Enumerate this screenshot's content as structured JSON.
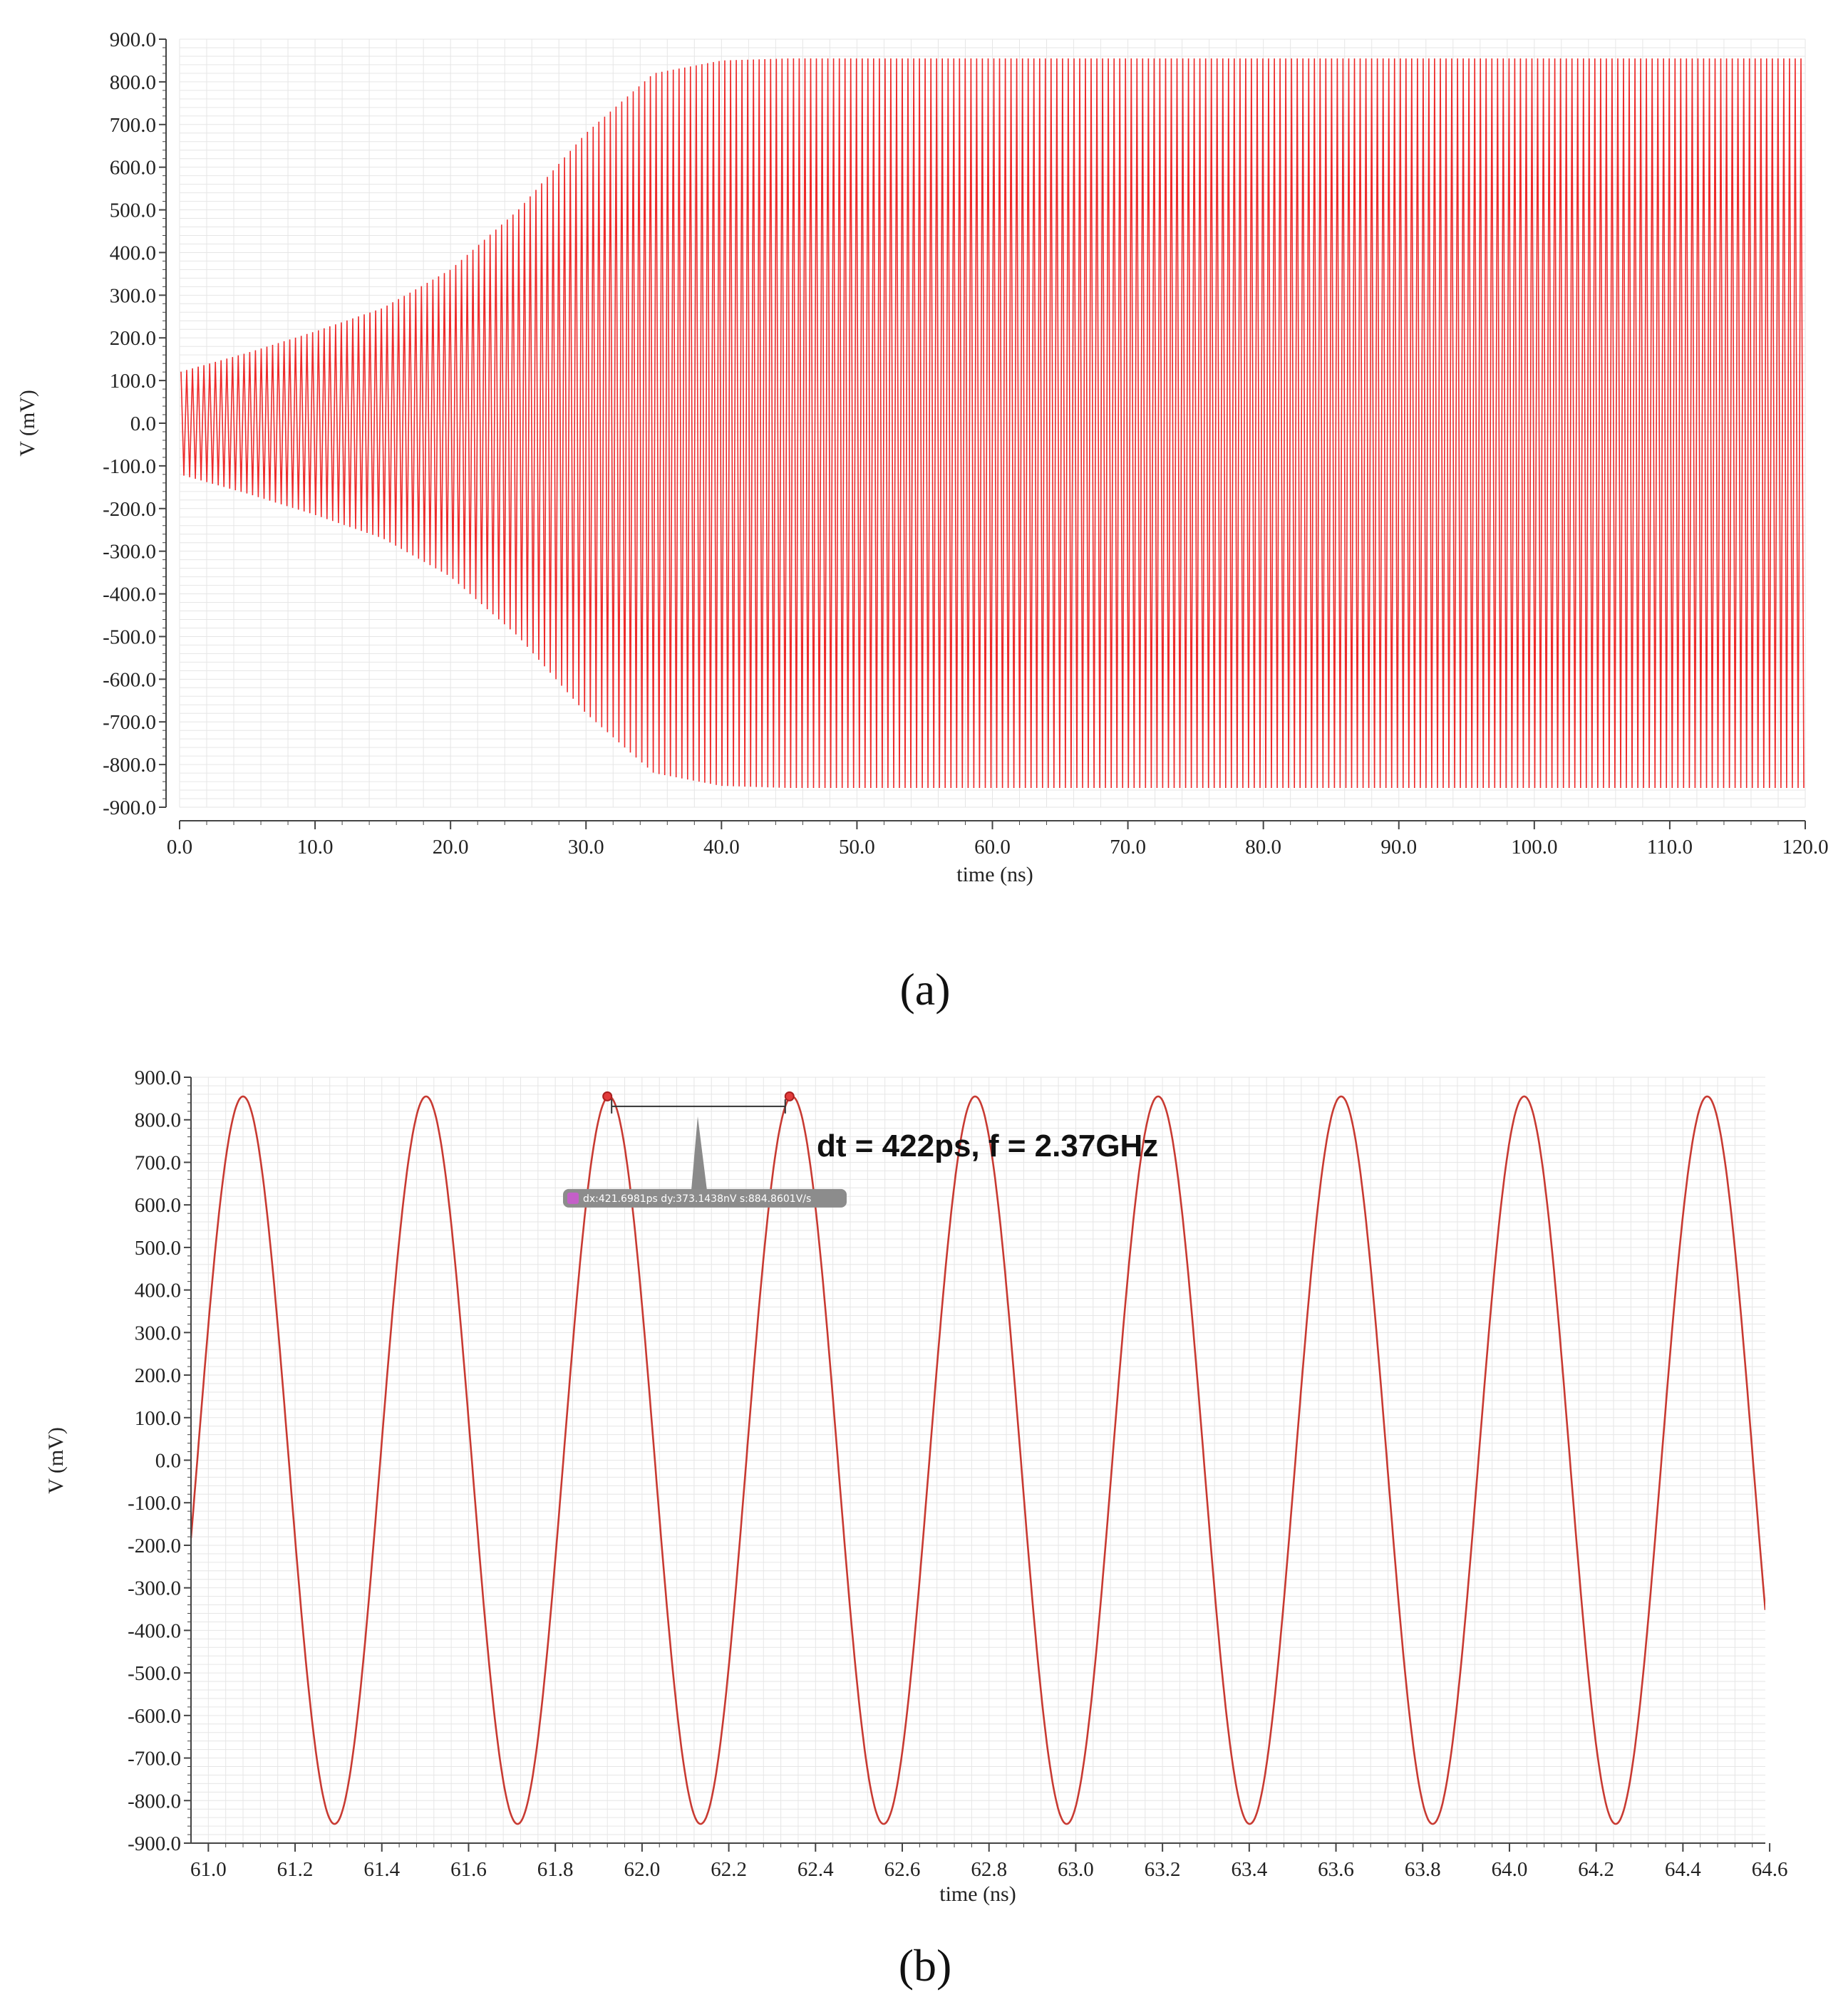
{
  "chart_data": [
    {
      "type": "line",
      "panel_label": "(a)",
      "xlabel": "time (ns)",
      "ylabel": "V (mV)",
      "xlim": [
        0,
        120
      ],
      "ylim": [
        -900,
        900
      ],
      "x_ticks": [
        "0.0",
        "10.0",
        "20.0",
        "30.0",
        "40.0",
        "50.0",
        "60.0",
        "70.0",
        "80.0",
        "90.0",
        "100.0",
        "110.0",
        "120.0"
      ],
      "y_ticks": [
        "900.0",
        "800.0",
        "700.0",
        "600.0",
        "500.0",
        "400.0",
        "300.0",
        "200.0",
        "100.0",
        "0.0",
        "-100.0",
        "-200.0",
        "-300.0",
        "-400.0",
        "-500.0",
        "-600.0",
        "-700.0",
        "-800.0",
        "-900.0"
      ],
      "grid": true,
      "color": "#ee2a2a",
      "series": [
        {
          "frequency_ghz": 2.37,
          "envelope_time_ns": [
            0,
            5,
            10,
            15,
            20,
            25,
            30,
            35,
            40,
            45,
            120
          ],
          "envelope_amplitude_mv": [
            120,
            165,
            215,
            270,
            360,
            500,
            680,
            820,
            850,
            855,
            855
          ]
        }
      ]
    },
    {
      "type": "line",
      "panel_label": "(b)",
      "xlabel": "time (ns)",
      "ylabel": "V (mV)",
      "xlim": [
        60.96,
        64.59
      ],
      "ylim": [
        -900,
        900
      ],
      "x_ticks": [
        "61.0",
        "61.2",
        "61.4",
        "61.6",
        "61.8",
        "62.0",
        "62.2",
        "62.4",
        "62.6",
        "62.8",
        "63.0",
        "63.2",
        "63.4",
        "63.6",
        "63.8",
        "64.0",
        "64.2",
        "64.4",
        "64.6"
      ],
      "y_ticks": [
        "900.0",
        "800.0",
        "700.0",
        "600.0",
        "500.0",
        "400.0",
        "300.0",
        "200.0",
        "100.0",
        "0.0",
        "-100.0",
        "-200.0",
        "-300.0",
        "-400.0",
        "-500.0",
        "-600.0",
        "-700.0",
        "-800.0",
        "-900.0"
      ],
      "grid": true,
      "color": "#c83a32",
      "series": [
        {
          "amplitude_mv": 855,
          "period_ps": 422,
          "first_peak_ns": 61.08
        }
      ],
      "annotation": "dt = 422ps, f = 2.37GHz",
      "markers_ns": [
        61.92,
        62.34
      ],
      "readout": "dx:421.6981ps dy:373.1438nV s:884.8601V/s"
    }
  ]
}
